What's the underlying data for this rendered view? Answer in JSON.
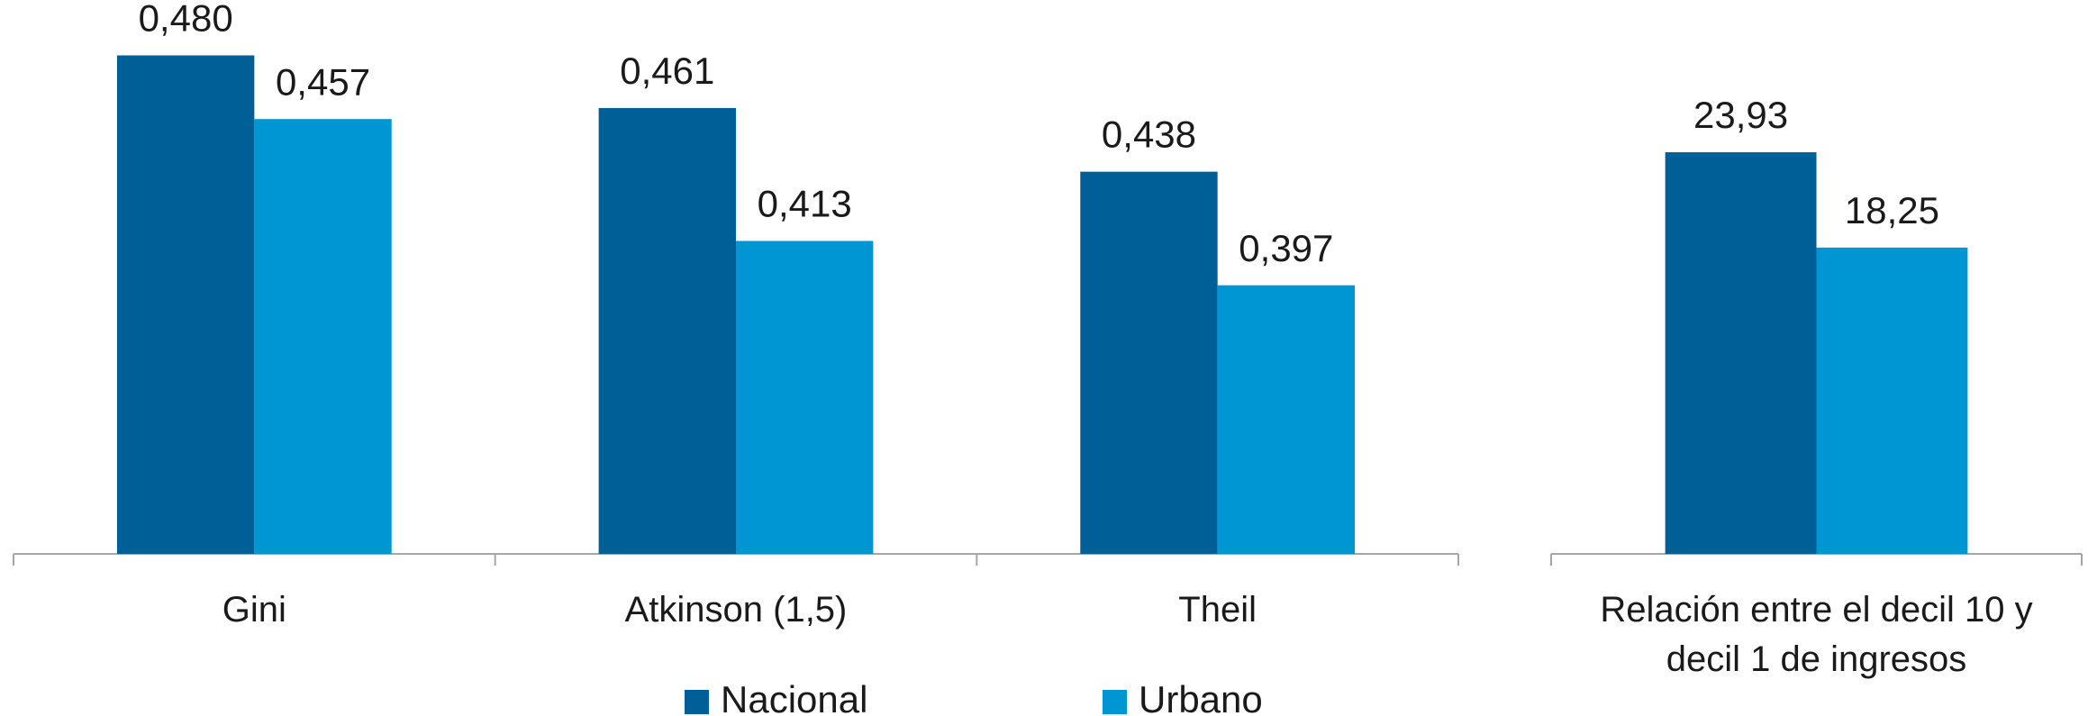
{
  "chart_data": [
    {
      "type": "bar",
      "categories": [
        "Gini",
        "Atkinson (1,5)",
        "Theil"
      ],
      "series": [
        {
          "name": "Nacional",
          "color": "#005f96",
          "values": [
            0.48,
            0.461,
            0.438
          ],
          "value_labels": [
            "0,480",
            "0,461",
            "0,438"
          ]
        },
        {
          "name": "Urbano",
          "color": "#0095d3",
          "values": [
            0.457,
            0.413,
            0.397
          ],
          "value_labels": [
            "0,457",
            "0,413",
            "0,397"
          ]
        }
      ],
      "ylim": [
        0.3,
        0.5
      ],
      "legend": "bottom"
    },
    {
      "type": "bar",
      "categories": [
        "Relación entre el decil 10 y decil 1 de ingresos"
      ],
      "series": [
        {
          "color": "#005f96",
          "values": [
            23.93
          ],
          "value_labels": [
            "23,93"
          ]
        },
        {
          "color": "#0095d3",
          "values": [
            18.25
          ],
          "value_labels": [
            "18,25"
          ]
        }
      ],
      "ylim": [
        0,
        33
      ]
    }
  ]
}
